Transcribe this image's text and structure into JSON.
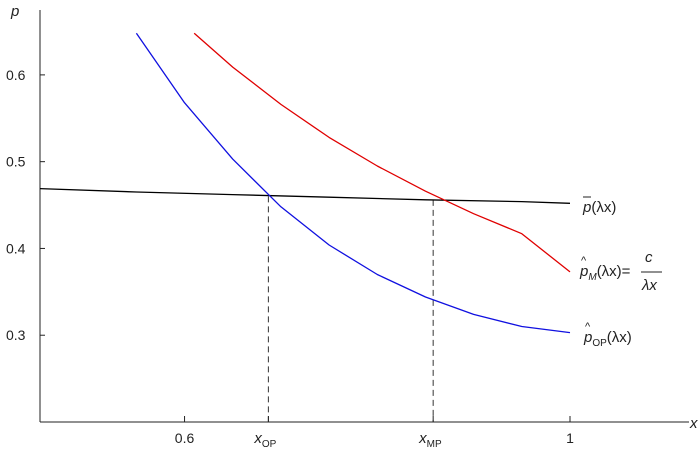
{
  "chart_data": {
    "type": "line",
    "xlabel": "x",
    "ylabel": "p",
    "xlim": [
      0.45,
      1.0
    ],
    "ylim": [
      0.2,
      0.65
    ],
    "grid": false,
    "x_ticks": [
      {
        "value": 0.6,
        "label": "0.6"
      },
      {
        "value": 1.0,
        "label": "1"
      }
    ],
    "y_ticks": [
      {
        "value": 0.3,
        "label": "0.3"
      },
      {
        "value": 0.4,
        "label": "0.4"
      },
      {
        "value": 0.5,
        "label": "0.5"
      },
      {
        "value": 0.6,
        "label": "0.6"
      }
    ],
    "series": [
      {
        "key": "pbar",
        "color": "#000000",
        "x": [
          0.45,
          0.55,
          0.65,
          0.75,
          0.85,
          0.95,
          1.0
        ],
        "y": [
          0.469,
          0.465,
          0.462,
          0.459,
          0.456,
          0.454,
          0.452
        ]
      },
      {
        "key": "pM",
        "color": "#e00000",
        "x": [
          0.61,
          0.65,
          0.7,
          0.75,
          0.8,
          0.85,
          0.9,
          0.95,
          1.0
        ],
        "y": [
          0.648,
          0.609,
          0.566,
          0.528,
          0.495,
          0.466,
          0.44,
          0.417,
          0.373
        ]
      },
      {
        "key": "pOP",
        "color": "#1010e0",
        "x": [
          0.55,
          0.6,
          0.65,
          0.7,
          0.75,
          0.8,
          0.85,
          0.9,
          0.95,
          1.0
        ],
        "y": [
          0.648,
          0.568,
          0.503,
          0.448,
          0.404,
          0.37,
          0.344,
          0.324,
          0.31,
          0.303
        ]
      }
    ],
    "markers": [
      {
        "key": "xop",
        "x": 0.687,
        "y": 0.46,
        "label": "x",
        "sub": "OP"
      },
      {
        "key": "xmp",
        "x": 0.858,
        "y": 0.456,
        "label": "x",
        "sub": "MP"
      }
    ],
    "annotations": {
      "pbar": {
        "p": "p",
        "arg": "(λx)"
      },
      "pM": {
        "p": "p",
        "sub": "M",
        "arg": "(λx)=",
        "num": "c",
        "den": "λx"
      },
      "pOP": {
        "p": "p",
        "sub": "OP",
        "arg": "(λx)"
      }
    }
  }
}
